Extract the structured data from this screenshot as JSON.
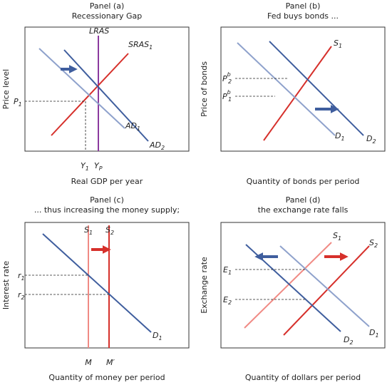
{
  "panels": [
    {
      "title": "Panel (a)",
      "subtitle": "Recessionary Gap",
      "y_axis_label": "Price level",
      "x_axis_label": "Real GDP per year",
      "curve_labels": [
        {
          "base": "LRAS"
        },
        {
          "base": "SRAS",
          "sub": "1"
        },
        {
          "base": "AD",
          "sub": "1"
        },
        {
          "base": "AD",
          "sub": "2"
        }
      ],
      "axis_marks": [
        {
          "base": "P",
          "sub": "1"
        },
        {
          "base": "Y",
          "sub": "1"
        },
        {
          "base": "Y",
          "sub": "P"
        }
      ]
    },
    {
      "title": "Panel (b)",
      "subtitle": "Fed buys bonds ...",
      "y_axis_label": "Price of bonds",
      "x_axis_label": "Quantity of bonds per period",
      "curve_labels": [
        {
          "base": "S",
          "sub": "1"
        },
        {
          "base": "D",
          "sub": "1"
        },
        {
          "base": "D",
          "sub": "2"
        }
      ],
      "axis_marks": [
        {
          "base": "P",
          "sup": "b",
          "sub": "2"
        },
        {
          "base": "P",
          "sup": "b",
          "sub": "1"
        }
      ]
    },
    {
      "title": "Panel (c)",
      "subtitle": "... thus increasing the money supply;",
      "y_axis_label": "Interest rate",
      "x_axis_label": "Quantity of money per period",
      "curve_labels": [
        {
          "base": "S",
          "sub": "1"
        },
        {
          "base": "S",
          "sub": "2"
        },
        {
          "base": "D",
          "sub": "1"
        }
      ],
      "axis_marks": [
        {
          "base": "r",
          "sub": "1"
        },
        {
          "base": "r",
          "sub": "2"
        },
        {
          "base": "M"
        },
        {
          "base": "M′"
        }
      ]
    },
    {
      "title": "Panel (d)",
      "subtitle": "the exchange rate falls",
      "y_axis_label": "Exchange rate",
      "x_axis_label": "Quantity of dollars per period",
      "curve_labels": [
        {
          "base": "S",
          "sub": "1"
        },
        {
          "base": "S",
          "sub": "2"
        },
        {
          "base": "D",
          "sub": "1"
        },
        {
          "base": "D",
          "sub": "2"
        }
      ],
      "axis_marks": [
        {
          "base": "E",
          "sub": "1"
        },
        {
          "base": "E",
          "sub": "2"
        }
      ]
    }
  ]
}
